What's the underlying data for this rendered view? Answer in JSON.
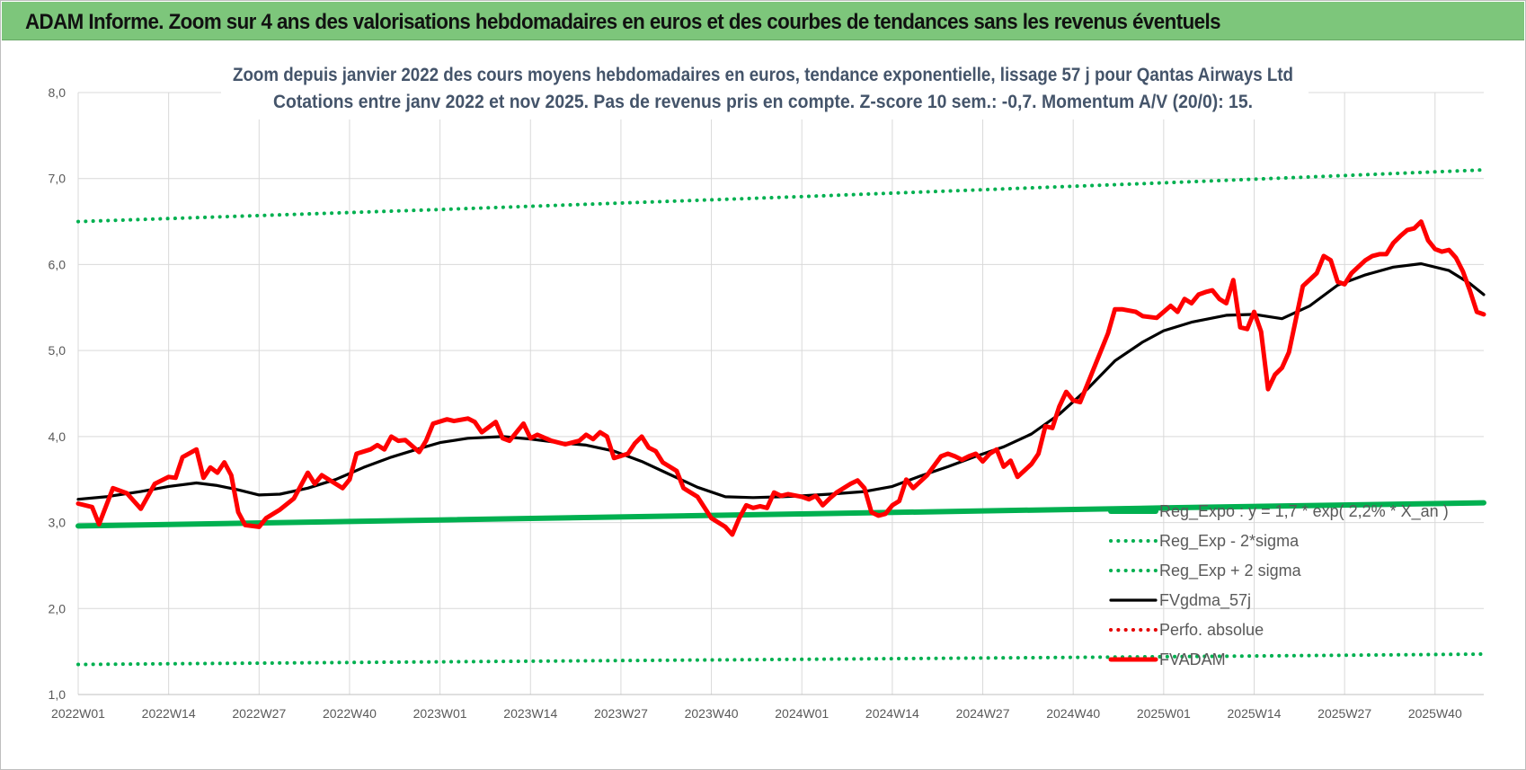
{
  "banner": {
    "title": "ADAM Informe. Zoom sur 4 ans des valorisations hebdomadaires en euros et des courbes de tendances sans les revenus éventuels",
    "background": "#7dc67b"
  },
  "chart_data": {
    "type": "line",
    "title_line1": "Zoom depuis janvier 2022 des cours moyens hebdomadaires en euros, tendance exponentielle, lissage 57 j pour Qantas Airways Ltd",
    "title_line2": "Cotations entre janv 2022 et nov 2025. Pas de revenus pris en compte. Z-score 10 sem.: -0,7. Momentum A/V (20/0): 15.",
    "ylim": [
      1.0,
      8.0
    ],
    "y_ticks": [
      "1,0",
      "2,0",
      "3,0",
      "4,0",
      "5,0",
      "6,0",
      "7,0",
      "8,0"
    ],
    "x_ticks": [
      "2022W01",
      "2022W14",
      "2022W27",
      "2022W40",
      "2023W01",
      "2023W14",
      "2023W27",
      "2023W40",
      "2024W01",
      "2024W14",
      "2024W27",
      "2024W40",
      "2025W01",
      "2025W14",
      "2025W27",
      "2025W40"
    ],
    "x_range": [
      "2022W01",
      "2025W47"
    ],
    "grid": true,
    "legend_position": "bottom-right",
    "series": [
      {
        "name": "Reg_Expo : y = 1,7 * exp( 2,2% * X_an )",
        "color": "#00b050",
        "style": "solid-thick",
        "points": [
          [
            "2022W01",
            2.96
          ],
          [
            "2023W01",
            3.03
          ],
          [
            "2024W01",
            3.1
          ],
          [
            "2025W01",
            3.17
          ],
          [
            "2025W47",
            3.23
          ]
        ]
      },
      {
        "name": "Reg_Exp - 2*sigma",
        "color": "#00b050",
        "style": "dotted",
        "points": [
          [
            "2022W01",
            1.35
          ],
          [
            "2023W01",
            1.38
          ],
          [
            "2024W01",
            1.41
          ],
          [
            "2025W01",
            1.44
          ],
          [
            "2025W47",
            1.47
          ]
        ]
      },
      {
        "name": "Reg_Exp + 2 sigma",
        "color": "#00b050",
        "style": "dotted",
        "points": [
          [
            "2022W01",
            6.5
          ],
          [
            "2023W01",
            6.64
          ],
          [
            "2024W01",
            6.79
          ],
          [
            "2025W01",
            6.95
          ],
          [
            "2025W47",
            7.1
          ]
        ]
      },
      {
        "name": "FVgdma_57j",
        "color": "#000000",
        "style": "solid",
        "points": [
          [
            "2022W01",
            3.27
          ],
          [
            "2022W05",
            3.3
          ],
          [
            "2022W10",
            3.36
          ],
          [
            "2022W14",
            3.42
          ],
          [
            "2022W18",
            3.46
          ],
          [
            "2022W21",
            3.43
          ],
          [
            "2022W24",
            3.38
          ],
          [
            "2022W27",
            3.32
          ],
          [
            "2022W30",
            3.33
          ],
          [
            "2022W34",
            3.4
          ],
          [
            "2022W38",
            3.5
          ],
          [
            "2022W42",
            3.64
          ],
          [
            "2022W46",
            3.76
          ],
          [
            "2022W50",
            3.86
          ],
          [
            "2023W01",
            3.93
          ],
          [
            "2023W05",
            3.98
          ],
          [
            "2023W10",
            4.0
          ],
          [
            "2023W14",
            3.97
          ],
          [
            "2023W18",
            3.93
          ],
          [
            "2023W22",
            3.9
          ],
          [
            "2023W26",
            3.83
          ],
          [
            "2023W30",
            3.71
          ],
          [
            "2023W34",
            3.56
          ],
          [
            "2023W38",
            3.41
          ],
          [
            "2023W42",
            3.3
          ],
          [
            "2023W46",
            3.29
          ],
          [
            "2023W50",
            3.3
          ],
          [
            "2024W01",
            3.31
          ],
          [
            "2024W05",
            3.33
          ],
          [
            "2024W10",
            3.36
          ],
          [
            "2024W14",
            3.42
          ],
          [
            "2024W18",
            3.54
          ],
          [
            "2024W22",
            3.65
          ],
          [
            "2024W26",
            3.77
          ],
          [
            "2024W30",
            3.88
          ],
          [
            "2024W34",
            4.03
          ],
          [
            "2024W38",
            4.26
          ],
          [
            "2024W42",
            4.55
          ],
          [
            "2024W46",
            4.88
          ],
          [
            "2024W50",
            5.1
          ],
          [
            "2025W01",
            5.23
          ],
          [
            "2025W05",
            5.33
          ],
          [
            "2025W10",
            5.41
          ],
          [
            "2025W14",
            5.42
          ],
          [
            "2025W18",
            5.37
          ],
          [
            "2025W22",
            5.52
          ],
          [
            "2025W26",
            5.76
          ],
          [
            "2025W30",
            5.88
          ],
          [
            "2025W34",
            5.97
          ],
          [
            "2025W38",
            6.01
          ],
          [
            "2025W42",
            5.93
          ],
          [
            "2025W45",
            5.78
          ],
          [
            "2025W47",
            5.65
          ]
        ]
      },
      {
        "name": "Perfo. absolue",
        "color": "#e60000",
        "style": "dotted",
        "points": []
      },
      {
        "name": "FVADAM",
        "color": "#ff0000",
        "style": "solid-thick",
        "points": [
          [
            "2022W01",
            3.22
          ],
          [
            "2022W03",
            3.18
          ],
          [
            "2022W04",
            2.98
          ],
          [
            "2022W06",
            3.4
          ],
          [
            "2022W08",
            3.34
          ],
          [
            "2022W10",
            3.16
          ],
          [
            "2022W12",
            3.45
          ],
          [
            "2022W14",
            3.53
          ],
          [
            "2022W15",
            3.52
          ],
          [
            "2022W16",
            3.76
          ],
          [
            "2022W18",
            3.85
          ],
          [
            "2022W19",
            3.52
          ],
          [
            "2022W20",
            3.64
          ],
          [
            "2022W21",
            3.58
          ],
          [
            "2022W22",
            3.7
          ],
          [
            "2022W23",
            3.55
          ],
          [
            "2022W24",
            3.12
          ],
          [
            "2022W25",
            2.97
          ],
          [
            "2022W27",
            2.95
          ],
          [
            "2022W28",
            3.05
          ],
          [
            "2022W30",
            3.15
          ],
          [
            "2022W32",
            3.28
          ],
          [
            "2022W34",
            3.58
          ],
          [
            "2022W35",
            3.45
          ],
          [
            "2022W36",
            3.55
          ],
          [
            "2022W38",
            3.45
          ],
          [
            "2022W39",
            3.4
          ],
          [
            "2022W40",
            3.5
          ],
          [
            "2022W41",
            3.8
          ],
          [
            "2022W43",
            3.85
          ],
          [
            "2022W44",
            3.9
          ],
          [
            "2022W45",
            3.85
          ],
          [
            "2022W46",
            4.0
          ],
          [
            "2022W47",
            3.95
          ],
          [
            "2022W48",
            3.96
          ],
          [
            "2022W50",
            3.82
          ],
          [
            "2022W51",
            3.95
          ],
          [
            "2022W52",
            4.15
          ],
          [
            "2023W02",
            4.2
          ],
          [
            "2023W03",
            4.18
          ],
          [
            "2023W05",
            4.21
          ],
          [
            "2023W06",
            4.17
          ],
          [
            "2023W07",
            4.05
          ],
          [
            "2023W09",
            4.17
          ],
          [
            "2023W10",
            3.98
          ],
          [
            "2023W11",
            3.95
          ],
          [
            "2023W13",
            4.15
          ],
          [
            "2023W14",
            3.98
          ],
          [
            "2023W15",
            4.02
          ],
          [
            "2023W17",
            3.95
          ],
          [
            "2023W19",
            3.91
          ],
          [
            "2023W21",
            3.95
          ],
          [
            "2023W22",
            4.02
          ],
          [
            "2023W23",
            3.97
          ],
          [
            "2023W24",
            4.05
          ],
          [
            "2023W25",
            4.0
          ],
          [
            "2023W26",
            3.75
          ],
          [
            "2023W28",
            3.8
          ],
          [
            "2023W29",
            3.92
          ],
          [
            "2023W30",
            4.0
          ],
          [
            "2023W31",
            3.87
          ],
          [
            "2023W32",
            3.83
          ],
          [
            "2023W33",
            3.7
          ],
          [
            "2023W35",
            3.6
          ],
          [
            "2023W36",
            3.4
          ],
          [
            "2023W38",
            3.3
          ],
          [
            "2023W40",
            3.05
          ],
          [
            "2023W42",
            2.95
          ],
          [
            "2023W43",
            2.86
          ],
          [
            "2023W44",
            3.05
          ],
          [
            "2023W45",
            3.2
          ],
          [
            "2023W46",
            3.17
          ],
          [
            "2023W47",
            3.19
          ],
          [
            "2023W48",
            3.17
          ],
          [
            "2023W49",
            3.35
          ],
          [
            "2023W50",
            3.31
          ],
          [
            "2023W51",
            3.33
          ],
          [
            "2024W01",
            3.3
          ],
          [
            "2024W02",
            3.27
          ],
          [
            "2024W03",
            3.31
          ],
          [
            "2024W04",
            3.2
          ],
          [
            "2024W05",
            3.28
          ],
          [
            "2024W06",
            3.35
          ],
          [
            "2024W08",
            3.45
          ],
          [
            "2024W09",
            3.49
          ],
          [
            "2024W10",
            3.4
          ],
          [
            "2024W11",
            3.12
          ],
          [
            "2024W12",
            3.08
          ],
          [
            "2024W13",
            3.1
          ],
          [
            "2024W14",
            3.2
          ],
          [
            "2024W15",
            3.25
          ],
          [
            "2024W16",
            3.5
          ],
          [
            "2024W17",
            3.4
          ],
          [
            "2024W19",
            3.55
          ],
          [
            "2024W21",
            3.77
          ],
          [
            "2024W22",
            3.8
          ],
          [
            "2024W23",
            3.77
          ],
          [
            "2024W24",
            3.73
          ],
          [
            "2024W25",
            3.77
          ],
          [
            "2024W26",
            3.8
          ],
          [
            "2024W27",
            3.71
          ],
          [
            "2024W28",
            3.8
          ],
          [
            "2024W29",
            3.85
          ],
          [
            "2024W30",
            3.65
          ],
          [
            "2024W31",
            3.72
          ],
          [
            "2024W32",
            3.53
          ],
          [
            "2024W34",
            3.68
          ],
          [
            "2024W35",
            3.8
          ],
          [
            "2024W36",
            4.12
          ],
          [
            "2024W37",
            4.1
          ],
          [
            "2024W38",
            4.35
          ],
          [
            "2024W39",
            4.52
          ],
          [
            "2024W40",
            4.42
          ],
          [
            "2024W41",
            4.4
          ],
          [
            "2024W42",
            4.6
          ],
          [
            "2024W43",
            4.8
          ],
          [
            "2024W44",
            5.0
          ],
          [
            "2024W45",
            5.2
          ],
          [
            "2024W46",
            5.48
          ],
          [
            "2024W47",
            5.48
          ],
          [
            "2024W49",
            5.45
          ],
          [
            "2024W50",
            5.4
          ],
          [
            "2024W52",
            5.38
          ],
          [
            "2025W01",
            5.45
          ],
          [
            "2025W02",
            5.52
          ],
          [
            "2025W03",
            5.45
          ],
          [
            "2025W04",
            5.6
          ],
          [
            "2025W05",
            5.55
          ],
          [
            "2025W06",
            5.65
          ],
          [
            "2025W07",
            5.68
          ],
          [
            "2025W08",
            5.7
          ],
          [
            "2025W09",
            5.6
          ],
          [
            "2025W10",
            5.55
          ],
          [
            "2025W11",
            5.82
          ],
          [
            "2025W12",
            5.27
          ],
          [
            "2025W13",
            5.25
          ],
          [
            "2025W14",
            5.45
          ],
          [
            "2025W15",
            5.22
          ],
          [
            "2025W16",
            4.55
          ],
          [
            "2025W17",
            4.72
          ],
          [
            "2025W18",
            4.8
          ],
          [
            "2025W19",
            4.98
          ],
          [
            "2025W21",
            5.75
          ],
          [
            "2025W23",
            5.9
          ],
          [
            "2025W24",
            6.1
          ],
          [
            "2025W25",
            6.05
          ],
          [
            "2025W26",
            5.8
          ],
          [
            "2025W27",
            5.77
          ],
          [
            "2025W28",
            5.9
          ],
          [
            "2025W30",
            6.05
          ],
          [
            "2025W31",
            6.1
          ],
          [
            "2025W32",
            6.12
          ],
          [
            "2025W33",
            6.12
          ],
          [
            "2025W34",
            6.25
          ],
          [
            "2025W35",
            6.33
          ],
          [
            "2025W36",
            6.4
          ],
          [
            "2025W37",
            6.42
          ],
          [
            "2025W38",
            6.5
          ],
          [
            "2025W39",
            6.28
          ],
          [
            "2025W40",
            6.18
          ],
          [
            "2025W41",
            6.15
          ],
          [
            "2025W42",
            6.17
          ],
          [
            "2025W43",
            6.08
          ],
          [
            "2025W44",
            5.92
          ],
          [
            "2025W45",
            5.7
          ],
          [
            "2025W46",
            5.45
          ],
          [
            "2025W47",
            5.42
          ]
        ]
      }
    ]
  }
}
